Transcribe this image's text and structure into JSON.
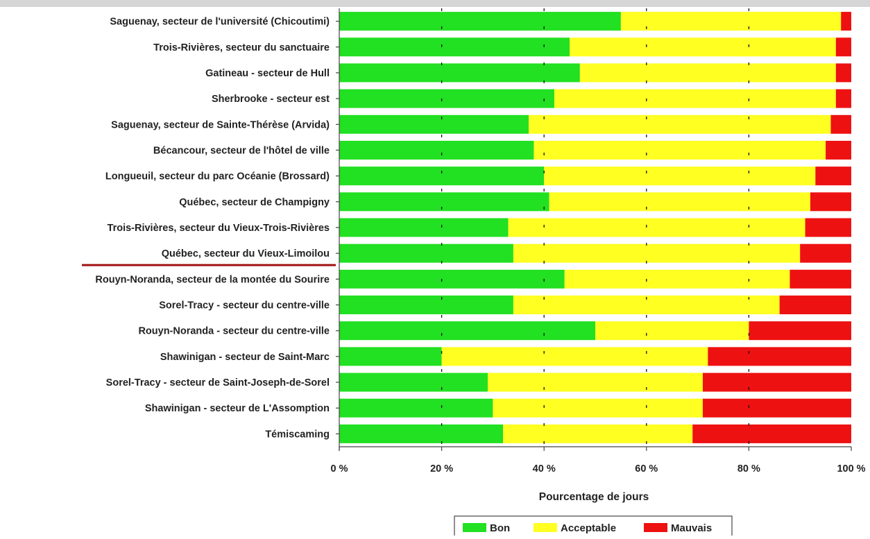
{
  "chart_data": {
    "type": "bar",
    "orientation": "horizontal",
    "stacked": true,
    "title": "",
    "xlabel": "Pourcentage de jours",
    "ylabel": "",
    "xlim": [
      0,
      100
    ],
    "x_ticks": [
      "0 %",
      "20 %",
      "40 %",
      "60 %",
      "80 %",
      "100 %"
    ],
    "grid": "vertical dashed",
    "legend_position": "bottom",
    "highlighted_category": "Québec, secteur du Vieux-Limoilou",
    "highlight_color": "#a01010",
    "categories": [
      "Saguenay, secteur de l'université (Chicoutimi)",
      "Trois-Rivières, secteur du sanctuaire",
      "Gatineau - secteur de Hull",
      "Sherbrooke - secteur est",
      "Saguenay, secteur de Sainte-Thérèse (Arvida)",
      "Bécancour, secteur de l'hôtel de ville",
      "Longueuil, secteur du parc Océanie (Brossard)",
      "Québec, secteur de Champigny",
      "Trois-Rivières, secteur du Vieux-Trois-Rivières",
      "Québec, secteur du Vieux-Limoilou",
      "Rouyn-Noranda, secteur de la montée du Sourire",
      "Sorel-Tracy - secteur du centre-ville",
      "Rouyn-Noranda - secteur du centre-ville",
      "Shawinigan - secteur de Saint-Marc",
      "Sorel-Tracy - secteur de Saint-Joseph-de-Sorel",
      "Shawinigan - secteur de L'Assomption",
      "Témiscaming"
    ],
    "series": [
      {
        "name": "Bon",
        "color": "#22e022",
        "values": [
          55,
          45,
          47,
          42,
          37,
          38,
          40,
          41,
          33,
          34,
          44,
          34,
          50,
          20,
          29,
          30,
          32
        ]
      },
      {
        "name": "Acceptable",
        "color": "#ffff22",
        "values": [
          43,
          52,
          50,
          55,
          59,
          57,
          53,
          51,
          58,
          56,
          44,
          52,
          30,
          52,
          42,
          41,
          37
        ]
      },
      {
        "name": "Mauvais",
        "color": "#ee1111",
        "values": [
          2,
          3,
          3,
          3,
          4,
          5,
          7,
          8,
          9,
          10,
          12,
          14,
          20,
          28,
          29,
          29,
          31
        ]
      }
    ]
  }
}
